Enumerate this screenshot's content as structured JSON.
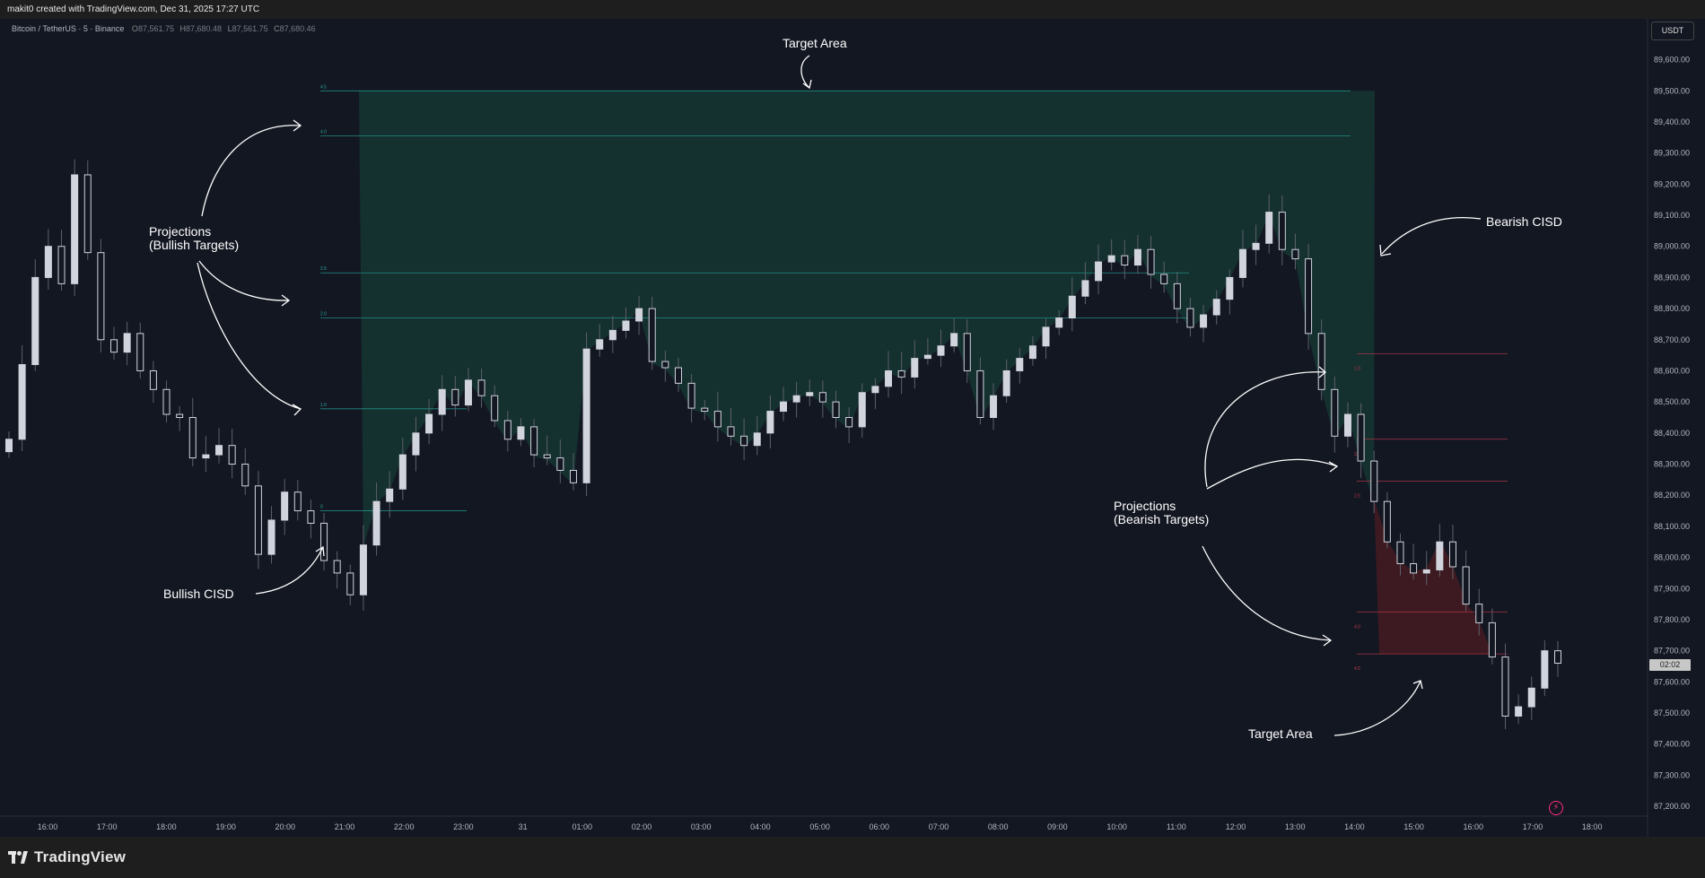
{
  "header": {
    "credit": "makit0 created with TradingView.com, Dec 31, 2025 17:27 UTC"
  },
  "legend": {
    "symbol": "Bitcoin / TetherUS · 5 · Binance",
    "o_label": "O",
    "o_value": "87,561.75",
    "h_label": "H",
    "h_value": "87,680.48",
    "l_label": "L",
    "l_value": "87,561.75",
    "c_label": "C",
    "c_value": "87,680.46"
  },
  "currency_button": "USDT",
  "countdown": "02:02",
  "footer": {
    "brand": "TradingView"
  },
  "colors": {
    "background": "#131722",
    "bull_zone": "#14302f",
    "bull_line": "#26a69a",
    "bear_zone": "#3d1a21",
    "bear_line": "#c0394a",
    "candle": "#d1d4dc",
    "accent": "#ff2d78"
  },
  "annotations": {
    "target_area_top": "Target Area",
    "bearish_cisd": "Bearish CISD",
    "projections_bull_1": "Projections",
    "projections_bull_2": "(Bullish Targets)",
    "bullish_cisd": "Bullish CISD",
    "projections_bear_1": "Projections",
    "projections_bear_2": "(Bearish Targets)",
    "target_area_bottom": "Target Area"
  },
  "chart_data": {
    "type": "candlestick",
    "y_axis": {
      "range": [
        87180,
        89720
      ],
      "ticks": [
        "89,600.00",
        "89,500.00",
        "89,400.00",
        "89,300.00",
        "89,200.00",
        "89,100.00",
        "89,000.00",
        "88,900.00",
        "88,800.00",
        "88,700.00",
        "88,600.00",
        "88,500.00",
        "88,400.00",
        "88,300.00",
        "88,200.00",
        "88,100.00",
        "88,000.00",
        "87,900.00",
        "87,800.00",
        "87,700.00",
        "87,600.00",
        "87,500.00",
        "87,400.00",
        "87,300.00",
        "87,200.00"
      ]
    },
    "x_axis": {
      "ticks": [
        "16:00",
        "17:00",
        "18:00",
        "19:00",
        "20:00",
        "21:00",
        "22:00",
        "23:00",
        "31",
        "01:00",
        "02:00",
        "03:00",
        "04:00",
        "05:00",
        "06:00",
        "07:00",
        "08:00",
        "09:00",
        "10:00",
        "11:00",
        "12:00",
        "13:00",
        "14:00",
        "15:00",
        "16:00",
        "17:00",
        "18:00"
      ]
    },
    "bullish_projection_levels": [
      {
        "label": "4.5",
        "price": 89500
      },
      {
        "label": "4.0",
        "price": 89355
      },
      {
        "label": "2.5",
        "price": 88915
      },
      {
        "label": "2.0",
        "price": 88770
      },
      {
        "label": "1.0",
        "price": 88478
      },
      {
        "label": "0",
        "price": 88150
      }
    ],
    "bearish_projection_levels": [
      {
        "label": "1.0",
        "price": 88655
      },
      {
        "label": "2.0",
        "price": 88380
      },
      {
        "label": "2.5",
        "price": 88245
      },
      {
        "label": "4.0",
        "price": 87825
      },
      {
        "label": "4.5",
        "price": 87690
      }
    ],
    "closes": [
      88380,
      88620,
      88900,
      89000,
      88880,
      89230,
      88980,
      88700,
      88660,
      88720,
      88600,
      88540,
      88460,
      88450,
      88320,
      88330,
      88360,
      88300,
      88230,
      88010,
      88120,
      88210,
      88150,
      88110,
      87990,
      87950,
      87880,
      88040,
      88180,
      88220,
      88330,
      88400,
      88460,
      88540,
      88490,
      88570,
      88520,
      88440,
      88380,
      88420,
      88330,
      88320,
      88280,
      88240,
      88670,
      88700,
      88730,
      88760,
      88800,
      88630,
      88610,
      88560,
      88480,
      88470,
      88420,
      88390,
      88360,
      88400,
      88470,
      88500,
      88520,
      88530,
      88500,
      88450,
      88420,
      88530,
      88550,
      88600,
      88580,
      88640,
      88650,
      88680,
      88720,
      88600,
      88450,
      88520,
      88600,
      88640,
      88680,
      88740,
      88770,
      88840,
      88890,
      88950,
      88970,
      88940,
      88990,
      88910,
      88880,
      88800,
      88740,
      88780,
      88830,
      88900,
      88990,
      89010,
      89110,
      88990,
      88960,
      88720,
      88540,
      88390,
      88460,
      88310,
      88180,
      88050,
      87980,
      87950,
      87960,
      88050,
      87970,
      87850,
      87790,
      87680,
      87490,
      87520,
      87580,
      87700,
      87660
    ]
  }
}
